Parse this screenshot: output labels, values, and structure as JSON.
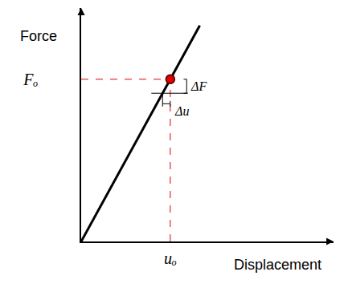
{
  "chart_data": {
    "type": "line",
    "x_label": "Displacement",
    "y_label": "Force",
    "x": [
      0,
      47
    ],
    "values": [
      0,
      92.5
    ],
    "color": "#000000",
    "xlim": [
      0,
      100
    ],
    "ylim": [
      0,
      100
    ],
    "xticks": [
      {
        "value": 35.3,
        "label": "uₒ"
      }
    ],
    "yticks": [
      {
        "value": 69.5,
        "label": "Fₒ"
      }
    ],
    "grid": false,
    "point": {
      "x": 35.3,
      "y": 69.5,
      "color": "#e00000",
      "marker": "circle",
      "line_style": "dashed"
    },
    "increments": [
      {
        "label": "ΔF",
        "value": 6
      },
      {
        "label": "Δu",
        "value": 3.05
      }
    ]
  }
}
